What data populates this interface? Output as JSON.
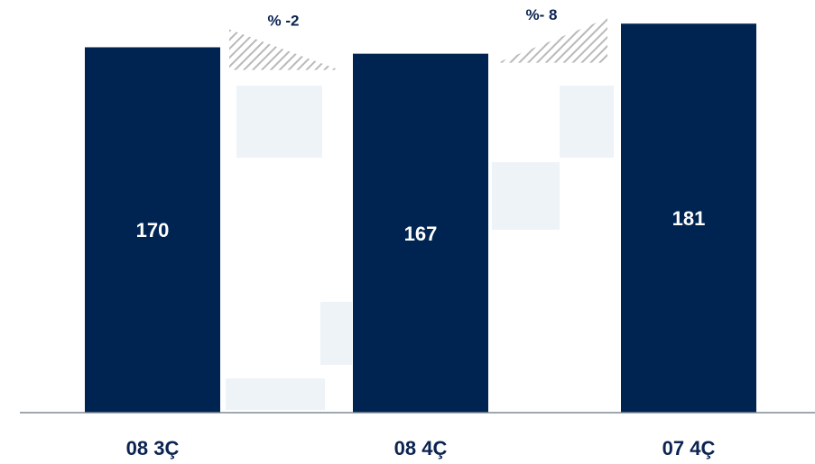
{
  "chart_data": {
    "type": "bar",
    "categories": [
      "08 3Ç",
      "08 4Ç",
      "07 4Ç"
    ],
    "values": [
      170,
      167,
      181
    ],
    "data_labels": [
      "170",
      "167",
      "181"
    ],
    "changes": [
      {
        "label": "% -2",
        "from": 0,
        "to": 1
      },
      {
        "label": "%- 8",
        "from": 1,
        "to": 2
      }
    ],
    "ylim": [
      0,
      192
    ],
    "grid": false,
    "colors": {
      "bar": "#002451",
      "axis": "#7f8a96",
      "hatch": "#b9b9b9",
      "text": "#0b2350"
    }
  }
}
